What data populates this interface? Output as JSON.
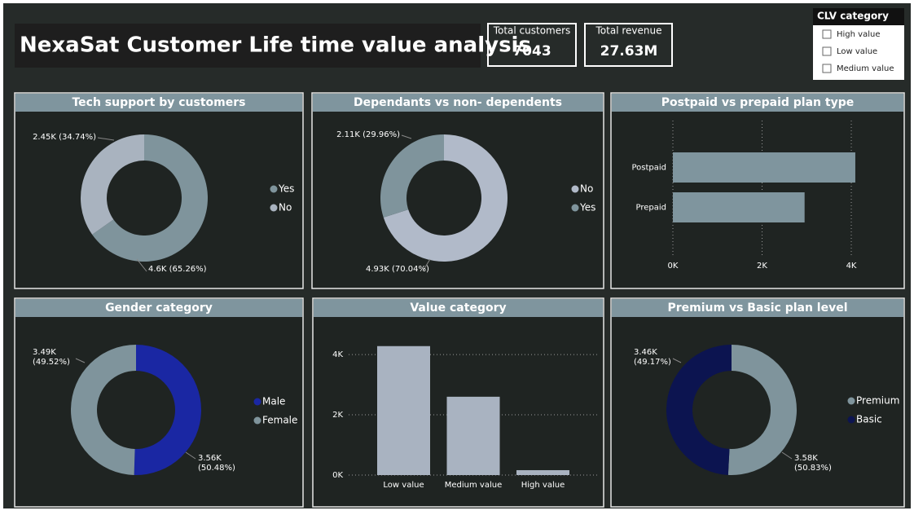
{
  "header": {
    "title": "NexaSat Customer Life time value analysis"
  },
  "cards": [
    {
      "label": "Total customers",
      "value": "7043"
    },
    {
      "label": "Total revenue",
      "value": "27.63M"
    }
  ],
  "slicer": {
    "title": "CLV category",
    "options": [
      "High value",
      "Low value",
      "Medium value"
    ]
  },
  "chart_data": [
    {
      "type": "donut",
      "title": "Tech support by customers",
      "categories": [
        "Yes",
        "No"
      ],
      "values": [
        4596,
        2447
      ],
      "value_labels": [
        "4.6K (65.26%)",
        "2.45K (34.74%)"
      ],
      "colors": [
        "#7f949c",
        "#a9b3bf"
      ]
    },
    {
      "type": "donut",
      "title": "Dependants vs non- dependents",
      "categories": [
        "No",
        "Yes"
      ],
      "values": [
        4933,
        2110
      ],
      "value_labels": [
        "4.93K (70.04%)",
        "2.11K (29.96%)"
      ],
      "colors": [
        "#b1bac9",
        "#7f949c"
      ]
    },
    {
      "type": "hbar",
      "title": "Postpaid vs prepaid plan type",
      "categories": [
        "Postpaid",
        "Prepaid"
      ],
      "values": [
        4090,
        2953
      ],
      "color": "#7f959e",
      "xlim": [
        0,
        4100
      ],
      "xticks": [
        {
          "value": 0,
          "label": "0K"
        },
        {
          "value": 2000,
          "label": "2K"
        },
        {
          "value": 4000,
          "label": "4K"
        }
      ],
      "grid": true
    },
    {
      "type": "donut",
      "title": "Gender category",
      "categories": [
        "Male",
        "Female"
      ],
      "values": [
        3555,
        3488
      ],
      "value_labels": [
        "3.56K (50.48%)",
        "3.49K (49.52%)"
      ],
      "colors": [
        "#1a27a3",
        "#7f949c"
      ]
    },
    {
      "type": "bar",
      "title": "Value category",
      "categories": [
        "Low value",
        "Medium value",
        "High value"
      ],
      "values": [
        4280,
        2600,
        163
      ],
      "color": "#a9b3c1",
      "ylim": [
        0,
        4300
      ],
      "yticks": [
        {
          "value": 0,
          "label": "0K"
        },
        {
          "value": 2000,
          "label": "2K"
        },
        {
          "value": 4000,
          "label": "4K"
        }
      ],
      "grid": true
    },
    {
      "type": "donut",
      "title": "Premium vs Basic plan level",
      "categories": [
        "Premium",
        "Basic"
      ],
      "values": [
        3580,
        3463
      ],
      "value_labels": [
        "3.58K (50.83%)",
        "3.46K (49.17%)"
      ],
      "colors": [
        "#7f949c",
        "#0c1450"
      ]
    }
  ]
}
